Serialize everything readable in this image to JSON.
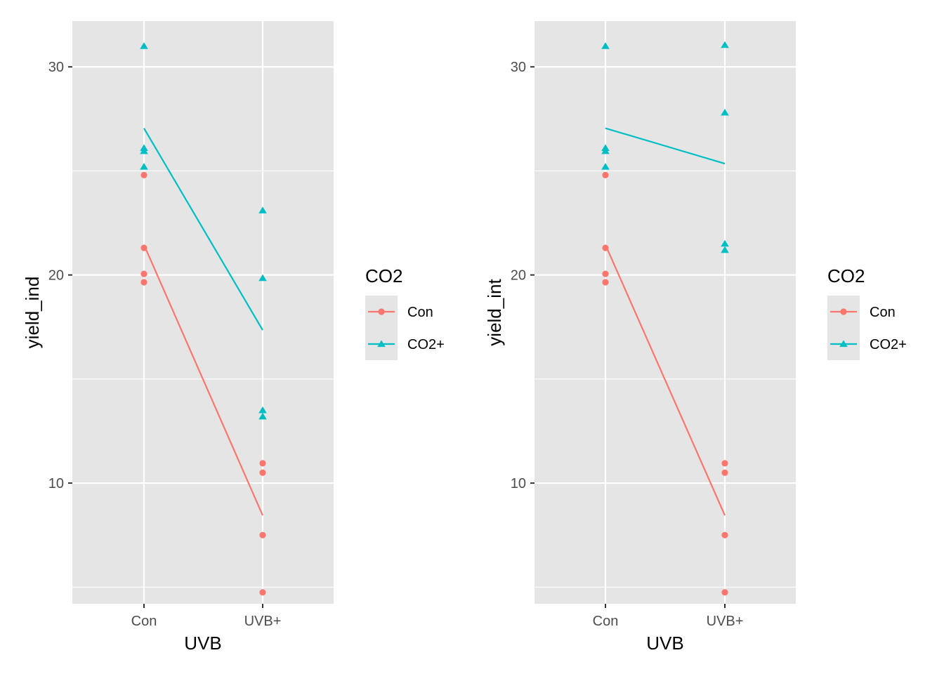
{
  "colors": {
    "panel_bg": "#E5E5E5",
    "grid": "#FFFFFF",
    "axis_text": "#4D4D4D",
    "title_text": "#000000",
    "series_con": "#F8766D",
    "series_co2": "#00BFC4"
  },
  "chart_data": [
    {
      "type": "scatter",
      "xlabel": "UVB",
      "ylabel": "yield_ind",
      "categories": [
        "Con",
        "UVB+"
      ],
      "ylim": [
        4.2,
        32.2
      ],
      "yticks": [
        10,
        20,
        30
      ],
      "y_minor_grid": [
        5,
        15,
        25
      ],
      "grid": true,
      "legend": {
        "title": "CO2",
        "placement": "right"
      },
      "series": [
        {
          "name": "Con",
          "color": "#F8766D",
          "marker": "circle",
          "points": [
            [
              "Con",
              24.8
            ],
            [
              "Con",
              21.3
            ],
            [
              "Con",
              20.05
            ],
            [
              "Con",
              19.65
            ],
            [
              "UVB+",
              10.95
            ],
            [
              "UVB+",
              10.5
            ],
            [
              "UVB+",
              7.5
            ],
            [
              "UVB+",
              4.75
            ]
          ],
          "line": [
            [
              "Con",
              21.45
            ],
            [
              "UVB+",
              8.45
            ]
          ]
        },
        {
          "name": "CO2+",
          "color": "#00BFC4",
          "marker": "triangle",
          "points": [
            [
              "Con",
              31.0
            ],
            [
              "Con",
              26.1
            ],
            [
              "Con",
              25.95
            ],
            [
              "Con",
              25.2
            ],
            [
              "UVB+",
              23.1
            ],
            [
              "UVB+",
              19.85
            ],
            [
              "UVB+",
              13.5
            ],
            [
              "UVB+",
              13.2
            ]
          ],
          "line": [
            [
              "Con",
              27.05
            ],
            [
              "UVB+",
              17.35
            ]
          ]
        }
      ]
    },
    {
      "type": "scatter",
      "xlabel": "UVB",
      "ylabel": "yield_int",
      "categories": [
        "Con",
        "UVB+"
      ],
      "ylim": [
        4.2,
        32.2
      ],
      "yticks": [
        10,
        20,
        30
      ],
      "y_minor_grid": [
        5,
        15,
        25
      ],
      "grid": true,
      "legend": {
        "title": "CO2",
        "placement": "right"
      },
      "series": [
        {
          "name": "Con",
          "color": "#F8766D",
          "marker": "circle",
          "points": [
            [
              "Con",
              24.8
            ],
            [
              "Con",
              21.3
            ],
            [
              "Con",
              20.05
            ],
            [
              "Con",
              19.65
            ],
            [
              "UVB+",
              10.95
            ],
            [
              "UVB+",
              10.5
            ],
            [
              "UVB+",
              7.5
            ],
            [
              "UVB+",
              4.75
            ]
          ],
          "line": [
            [
              "Con",
              21.45
            ],
            [
              "UVB+",
              8.45
            ]
          ]
        },
        {
          "name": "CO2+",
          "color": "#00BFC4",
          "marker": "triangle",
          "points": [
            [
              "Con",
              31.0
            ],
            [
              "Con",
              26.1
            ],
            [
              "Con",
              25.95
            ],
            [
              "Con",
              25.2
            ],
            [
              "UVB+",
              31.05
            ],
            [
              "UVB+",
              27.8
            ],
            [
              "UVB+",
              21.5
            ],
            [
              "UVB+",
              21.2
            ]
          ],
          "line": [
            [
              "Con",
              27.05
            ],
            [
              "UVB+",
              25.35
            ]
          ]
        }
      ]
    }
  ]
}
